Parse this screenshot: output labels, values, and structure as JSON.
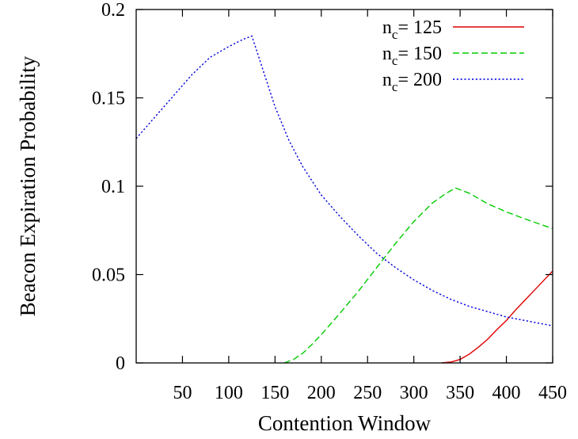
{
  "chart_data": {
    "type": "line",
    "title": "",
    "xlabel": "Contention Window",
    "ylabel": "Beacon Expiration Probability",
    "xlim": [
      0,
      450
    ],
    "ylim": [
      0,
      0.2
    ],
    "xticks": [
      {
        "value": 50,
        "label": "50"
      },
      {
        "value": 100,
        "label": "100"
      },
      {
        "value": 150,
        "label": "150"
      },
      {
        "value": 200,
        "label": "200"
      },
      {
        "value": 250,
        "label": "250"
      },
      {
        "value": 300,
        "label": "300"
      },
      {
        "value": 350,
        "label": "350"
      },
      {
        "value": 400,
        "label": "400"
      },
      {
        "value": 450,
        "label": "450"
      }
    ],
    "yticks": [
      {
        "value": 0,
        "label": "0"
      },
      {
        "value": 0.05,
        "label": "0.05"
      },
      {
        "value": 0.1,
        "label": "0.1"
      },
      {
        "value": 0.15,
        "label": "0.15"
      },
      {
        "value": 0.2,
        "label": "0.2"
      }
    ],
    "grid": false,
    "legend_position": "top-right",
    "series": [
      {
        "name": "n_c= 125",
        "legend_base": "n",
        "legend_sub": "c",
        "legend_rest": "= 125",
        "color": "#e00000",
        "dash": "solid",
        "x": [
          330,
          340,
          350,
          360,
          370,
          380,
          390,
          400,
          410,
          420,
          430,
          440,
          450
        ],
        "y": [
          0,
          0.0005,
          0.002,
          0.005,
          0.009,
          0.0135,
          0.019,
          0.024,
          0.03,
          0.0355,
          0.041,
          0.0465,
          0.052
        ]
      },
      {
        "name": "n_c= 150",
        "legend_base": "n",
        "legend_sub": "c",
        "legend_rest": "= 150",
        "color": "#00cc00",
        "dash": "dashed",
        "x": [
          160,
          170,
          180,
          190,
          200,
          220,
          240,
          260,
          280,
          300,
          320,
          335,
          345,
          360,
          380,
          400,
          420,
          450
        ],
        "y": [
          0,
          0.002,
          0.0055,
          0.0105,
          0.016,
          0.028,
          0.0405,
          0.054,
          0.0675,
          0.08,
          0.0905,
          0.096,
          0.099,
          0.096,
          0.09,
          0.0855,
          0.0815,
          0.076
        ]
      },
      {
        "name": "n_c= 200",
        "legend_base": "n",
        "legend_sub": "c",
        "legend_rest": "= 200",
        "color": "#0000dd",
        "dash": "dotted",
        "x": [
          0,
          20,
          40,
          60,
          80,
          100,
          115,
          125,
          130,
          140,
          150,
          165,
          180,
          200,
          220,
          240,
          260,
          280,
          300,
          320,
          340,
          360,
          380,
          400,
          420,
          450
        ],
        "y": [
          0.127,
          0.139,
          0.151,
          0.163,
          0.173,
          0.179,
          0.183,
          0.185,
          0.177,
          0.161,
          0.145,
          0.126,
          0.111,
          0.095,
          0.083,
          0.072,
          0.062,
          0.054,
          0.047,
          0.041,
          0.036,
          0.032,
          0.029,
          0.026,
          0.024,
          0.021
        ]
      }
    ]
  }
}
